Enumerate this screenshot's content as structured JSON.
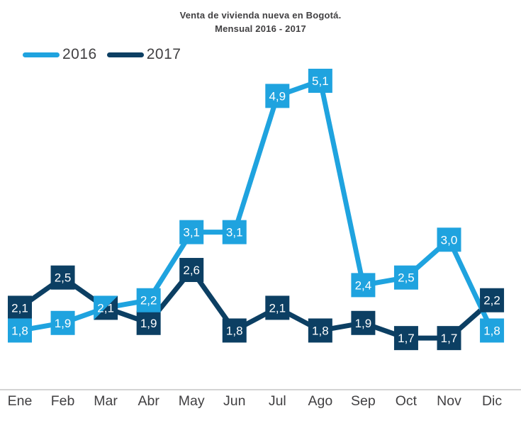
{
  "title": {
    "line1": "Venta de vivienda nueva en Bogotá.",
    "line2": "Mensual 2016 - 2017"
  },
  "legend": [
    {
      "label": "2016",
      "color": "#1FA3DF"
    },
    {
      "label": "2017",
      "color": "#0C3F63"
    }
  ],
  "colors": {
    "series_2016": "#1FA3DF",
    "series_2017": "#0C3F63",
    "text": "#414042",
    "marker_label": "#ffffff",
    "axis_line": "#c6c6c6"
  },
  "chart_data": {
    "type": "line",
    "title": "Venta de vivienda nueva en Bogotá. Mensual 2016 - 2017",
    "xlabel": "",
    "ylabel": "",
    "categories": [
      "Ene",
      "Feb",
      "Mar",
      "Abr",
      "May",
      "Jun",
      "Jul",
      "Ago",
      "Sep",
      "Oct",
      "Nov",
      "Dic"
    ],
    "series": [
      {
        "name": "2016",
        "color": "#1FA3DF",
        "values": [
          1.8,
          1.9,
          2.1,
          2.2,
          3.1,
          3.1,
          4.9,
          5.1,
          2.4,
          2.5,
          3.0,
          1.8
        ]
      },
      {
        "name": "2017",
        "color": "#0C3F63",
        "values": [
          2.1,
          2.5,
          2.1,
          1.9,
          2.6,
          1.8,
          2.1,
          1.8,
          1.9,
          1.7,
          1.7,
          2.2
        ]
      }
    ],
    "value_labels": {
      "2016": [
        "1,8",
        "1,9",
        "2,1",
        "2,2",
        "3,1",
        "3,1",
        "4,9",
        "5,1",
        "2,4",
        "2,5",
        "3,0",
        "1,8"
      ],
      "2017": [
        "2,1",
        "2,5",
        "2,1",
        "1,9",
        "2,6",
        "1,8",
        "2,1",
        "1,8",
        "1,9",
        "1,7",
        "1,7",
        "2,2"
      ]
    },
    "decimal_separator": ",",
    "legend_position": "top-left",
    "grid": false,
    "y_axis_visible": false,
    "ylim": [
      1.5,
      5.3
    ]
  }
}
